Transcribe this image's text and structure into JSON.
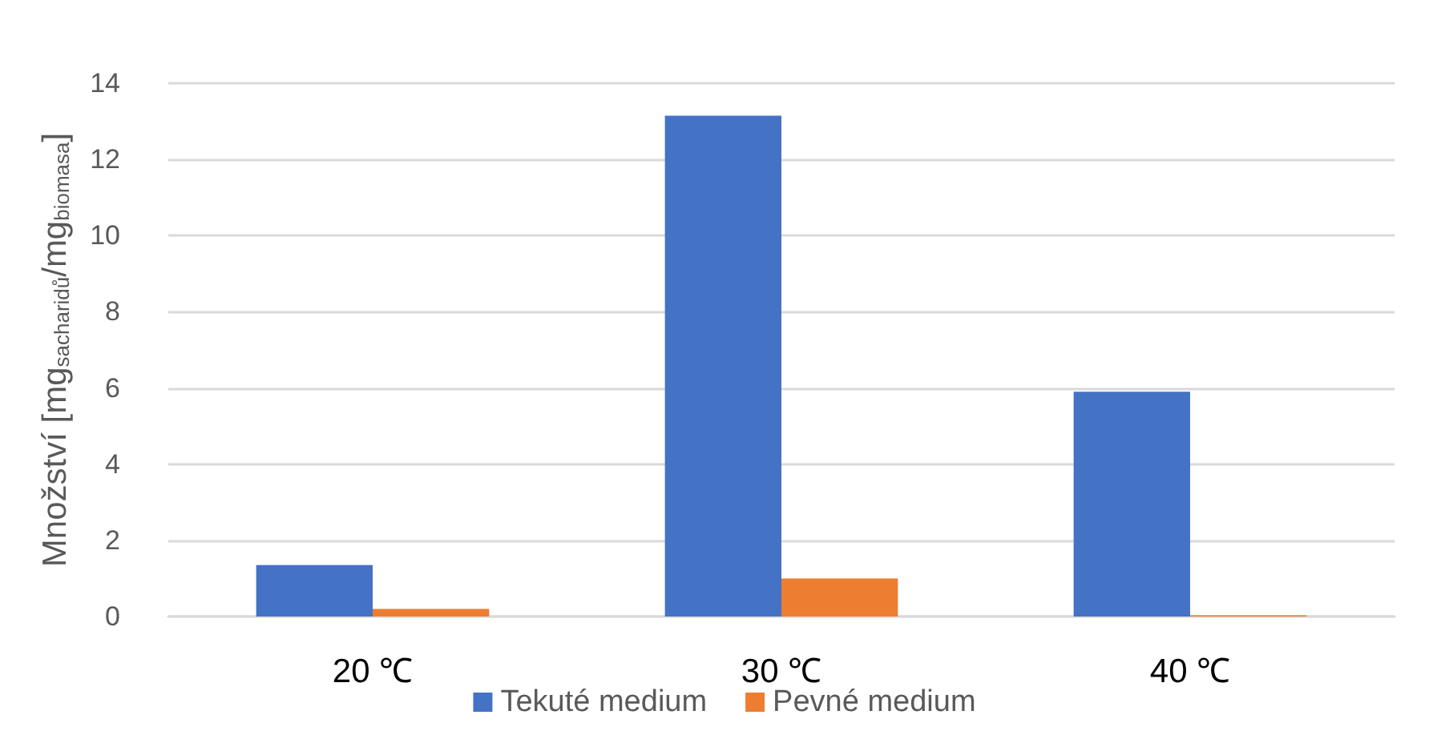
{
  "chart_data": {
    "type": "bar",
    "ylabel": "Množství [mg$_{sacharidů}$/mg$_{biomasa}$]",
    "categories": [
      "20 ℃",
      "30 ℃",
      "40 ℃"
    ],
    "series": [
      {
        "name": "Tekuté medium",
        "color": "#4472c4",
        "values": [
          1.35,
          13.15,
          5.9
        ]
      },
      {
        "name": "Pevné medium",
        "color": "#ed7d31",
        "values": [
          0.2,
          1.0,
          0.03
        ]
      }
    ],
    "ylim": [
      0,
      14
    ],
    "yticks": [
      0,
      2,
      4,
      6,
      8,
      10,
      12,
      14
    ],
    "grid": "y",
    "legend": "bottom"
  }
}
